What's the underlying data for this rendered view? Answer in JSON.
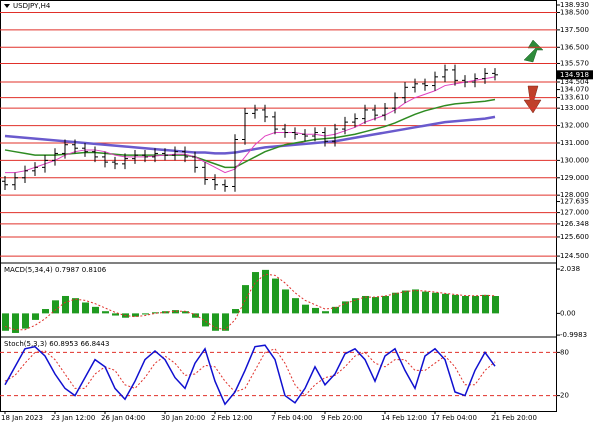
{
  "chart_data": {
    "type": "ohlc",
    "symbol": "USDJPY,H4",
    "bar_color": "#000000",
    "categories": [
      "18 Jan 2023",
      null,
      null,
      null,
      null,
      "23 Jan 12:00",
      null,
      null,
      null,
      null,
      "26 Jan 04:00",
      null,
      null,
      null,
      null,
      null,
      "30 Jan 20:00",
      null,
      null,
      null,
      null,
      "2 Feb 12:00",
      null,
      null,
      null,
      null,
      null,
      "7 Feb 04:00",
      null,
      null,
      null,
      null,
      "9 Feb 20:00",
      null,
      null,
      null,
      null,
      null,
      "14 Feb 12:00",
      null,
      null,
      null,
      null,
      "17 Feb 04:00",
      null,
      null,
      null,
      null,
      null,
      "21 Feb 20:00"
    ],
    "open": [
      128.8,
      128.6,
      129.0,
      129.4,
      129.6,
      130.0,
      130.4,
      130.9,
      130.7,
      130.5,
      130.2,
      129.9,
      129.8,
      130.1,
      130.3,
      130.2,
      130.4,
      130.3,
      130.5,
      130.2,
      129.6,
      128.9,
      128.6,
      128.5,
      131.2,
      132.7,
      132.9,
      132.5,
      131.8,
      131.6,
      131.5,
      131.4,
      131.6,
      131.1,
      131.8,
      132.2,
      132.4,
      132.9,
      132.6,
      133.0,
      133.6,
      134.2,
      134.4,
      134.3,
      134.8,
      135.2,
      134.6,
      134.5,
      134.7,
      135.0
    ],
    "high": [
      129.1,
      129.3,
      129.7,
      129.9,
      130.3,
      130.7,
      131.2,
      131.2,
      131.0,
      130.8,
      130.5,
      130.2,
      130.4,
      130.6,
      130.6,
      130.7,
      130.7,
      130.8,
      130.8,
      130.5,
      129.9,
      129.2,
      128.9,
      131.5,
      133.0,
      133.2,
      133.2,
      132.8,
      132.1,
      131.9,
      131.8,
      131.9,
      131.9,
      132.1,
      132.5,
      132.7,
      133.2,
      133.2,
      133.3,
      133.9,
      134.5,
      134.7,
      134.7,
      135.1,
      135.5,
      135.5,
      134.9,
      135.0,
      135.3,
      135.3
    ],
    "low": [
      128.3,
      128.3,
      128.7,
      129.1,
      129.3,
      129.7,
      130.1,
      130.4,
      130.2,
      129.9,
      129.6,
      129.5,
      129.5,
      129.8,
      129.9,
      129.9,
      130.0,
      130.0,
      129.9,
      129.3,
      128.6,
      128.3,
      128.2,
      128.2,
      130.9,
      132.4,
      132.2,
      131.5,
      131.3,
      131.2,
      131.1,
      131.1,
      130.8,
      130.8,
      131.5,
      131.9,
      132.1,
      132.3,
      132.3,
      132.7,
      133.3,
      133.9,
      134.0,
      134.0,
      134.5,
      134.3,
      134.2,
      134.2,
      134.4,
      134.6
    ],
    "close": [
      128.6,
      129.0,
      129.4,
      129.6,
      130.0,
      130.4,
      130.9,
      130.7,
      130.5,
      130.2,
      129.9,
      129.8,
      130.1,
      130.3,
      130.2,
      130.4,
      130.3,
      130.5,
      130.2,
      129.6,
      128.9,
      128.6,
      128.5,
      131.2,
      132.7,
      132.9,
      132.5,
      131.8,
      131.6,
      131.5,
      131.4,
      131.6,
      131.1,
      131.8,
      132.2,
      132.4,
      132.9,
      132.6,
      133.0,
      133.6,
      134.2,
      134.4,
      134.3,
      134.8,
      135.2,
      134.6,
      134.5,
      134.7,
      135.0,
      134.918
    ],
    "moving_averages": [
      {
        "color": "#6a5acd",
        "width": 2.5,
        "values": [
          131.4,
          131.35,
          131.3,
          131.25,
          131.2,
          131.15,
          131.1,
          131.05,
          131.0,
          130.95,
          130.9,
          130.85,
          130.8,
          130.75,
          130.7,
          130.65,
          130.6,
          130.55,
          130.5,
          130.45,
          130.45,
          130.4,
          130.4,
          130.45,
          130.55,
          130.65,
          130.75,
          130.8,
          130.85,
          130.9,
          130.95,
          131.0,
          131.05,
          131.1,
          131.2,
          131.3,
          131.4,
          131.5,
          131.6,
          131.7,
          131.8,
          131.9,
          132.0,
          132.1,
          132.2,
          132.25,
          132.3,
          132.35,
          132.4,
          132.5
        ]
      },
      {
        "color": "#2e8b22",
        "width": 1.5,
        "values": [
          130.6,
          130.5,
          130.4,
          130.3,
          130.3,
          130.3,
          130.35,
          130.4,
          130.45,
          130.45,
          130.4,
          130.35,
          130.3,
          130.3,
          130.3,
          130.3,
          130.3,
          130.3,
          130.3,
          130.2,
          130.0,
          129.8,
          129.6,
          129.6,
          129.9,
          130.2,
          130.5,
          130.7,
          130.9,
          131.0,
          131.1,
          131.2,
          131.25,
          131.3,
          131.4,
          131.5,
          131.65,
          131.8,
          131.95,
          132.15,
          132.4,
          132.65,
          132.85,
          133.0,
          133.15,
          133.25,
          133.3,
          133.35,
          133.4,
          133.5
        ]
      },
      {
        "color": "#e040c0",
        "width": 1,
        "values": [
          129.3,
          129.3,
          129.4,
          129.6,
          129.8,
          130.0,
          130.3,
          130.5,
          130.6,
          130.6,
          130.5,
          130.3,
          130.2,
          130.2,
          130.2,
          130.25,
          130.3,
          130.35,
          130.35,
          130.2,
          129.9,
          129.6,
          129.3,
          129.5,
          130.2,
          130.9,
          131.4,
          131.6,
          131.6,
          131.6,
          131.5,
          131.5,
          131.4,
          131.5,
          131.7,
          131.9,
          132.2,
          132.4,
          132.6,
          132.9,
          133.3,
          133.6,
          133.8,
          134.0,
          134.3,
          134.4,
          134.5,
          134.6,
          134.7,
          134.8
        ]
      }
    ],
    "ylim": [
      124.16,
      139.16
    ],
    "yticks": [
      {
        "value": 138.93,
        "label": "138.930"
      },
      {
        "value": 138.5,
        "label": "138.500"
      },
      {
        "value": 137.5,
        "label": "137.500"
      },
      {
        "value": 136.5,
        "label": "136.500"
      },
      {
        "value": 135.57,
        "label": "135.570"
      },
      134.504,
      {
        "value": 134.07,
        "label": "134.070"
      },
      {
        "value": 133.61,
        "label": "133.610"
      },
      {
        "value": 133,
        "label": "133.000"
      },
      {
        "value": 132,
        "label": "132.000"
      },
      {
        "value": 131,
        "label": "131.000"
      },
      {
        "value": 130,
        "label": "130.000"
      },
      {
        "value": 129,
        "label": "129.000"
      },
      {
        "value": 128,
        "label": "128.000"
      },
      127.635,
      {
        "value": 127,
        "label": "127.000"
      },
      126.348,
      {
        "value": 125.6,
        "label": "125.600"
      },
      {
        "value": 124.5,
        "label": "124.500"
      }
    ],
    "levels": [
      138.5,
      137.5,
      136.5,
      135.57,
      134.504,
      133.61,
      133,
      132,
      131,
      130,
      129,
      128,
      127,
      126.348,
      125.6,
      124.5
    ],
    "level_color": "#e0302a",
    "macd": {
      "title": "MACD(5,34,4)",
      "color": "#1f9a1f",
      "signal_color": "#e0302a",
      "values": [
        -0.8,
        -0.9,
        -0.7,
        -0.3,
        0.2,
        0.6,
        0.8,
        0.7,
        0.5,
        0.3,
        0.1,
        -0.1,
        -0.2,
        -0.15,
        -0.05,
        0.05,
        0.1,
        0.15,
        0.1,
        -0.2,
        -0.6,
        -0.8,
        -0.8,
        0.2,
        1.3,
        1.9,
        2.0,
        1.6,
        1.1,
        0.7,
        0.4,
        0.25,
        0.1,
        0.3,
        0.55,
        0.7,
        0.8,
        0.75,
        0.8,
        0.95,
        1.05,
        1.1,
        1.0,
        0.95,
        0.9,
        0.85,
        0.8,
        0.8,
        0.85,
        0.7987
      ],
      "signal": [
        -0.6,
        -0.75,
        -0.75,
        -0.55,
        -0.25,
        0.15,
        0.5,
        0.65,
        0.6,
        0.45,
        0.25,
        0.05,
        -0.1,
        -0.15,
        -0.1,
        0.0,
        0.05,
        0.1,
        0.1,
        -0.05,
        -0.35,
        -0.65,
        -0.75,
        -0.3,
        0.6,
        1.4,
        1.8,
        1.75,
        1.4,
        0.95,
        0.6,
        0.4,
        0.2,
        0.25,
        0.45,
        0.6,
        0.75,
        0.75,
        0.8,
        0.9,
        1.0,
        1.05,
        1.03,
        0.98,
        0.92,
        0.87,
        0.82,
        0.81,
        0.83,
        0.8106
      ],
      "ylim": [
        -1.04,
        2.27
      ],
      "yticks": [
        2.038,
        {
          "value": 0,
          "label": "0.00"
        },
        -0.9983
      ]
    },
    "stoch": {
      "title": "Stoch(5,3,3)",
      "k_color": "#1010d0",
      "d_color": "#e0302a",
      "k": [
        35,
        60,
        85,
        88,
        75,
        50,
        30,
        20,
        45,
        70,
        60,
        30,
        15,
        40,
        70,
        82,
        70,
        45,
        30,
        65,
        85,
        40,
        8,
        25,
        55,
        88,
        90,
        70,
        20,
        10,
        30,
        60,
        35,
        50,
        78,
        85,
        70,
        40,
        75,
        85,
        55,
        30,
        75,
        85,
        70,
        25,
        20,
        55,
        80,
        60.8953
      ],
      "d": [
        40,
        48,
        65,
        80,
        82,
        70,
        50,
        30,
        30,
        50,
        60,
        55,
        35,
        30,
        45,
        65,
        75,
        65,
        48,
        50,
        62,
        60,
        40,
        25,
        30,
        55,
        80,
        85,
        65,
        35,
        20,
        35,
        45,
        48,
        60,
        75,
        80,
        65,
        60,
        70,
        70,
        55,
        55,
        65,
        75,
        60,
        35,
        35,
        55,
        66.8443
      ],
      "ylim": [
        0,
        100
      ],
      "yticks": [
        80,
        20
      ]
    }
  }
}
